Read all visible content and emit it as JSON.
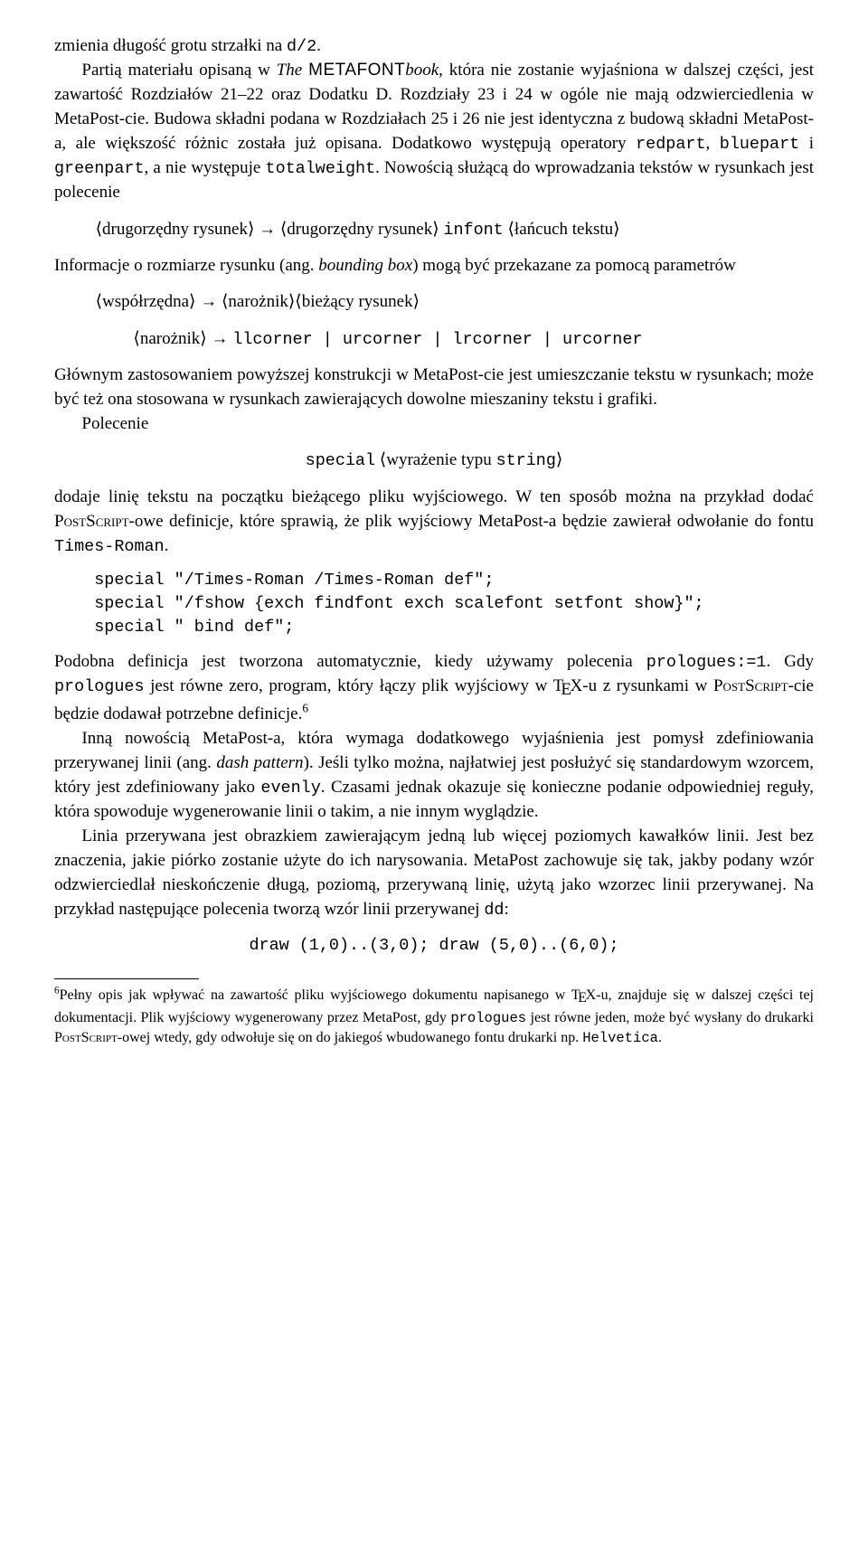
{
  "p1": {
    "run1_pre": "zmienia długość grotu strzałki na ",
    "run1_tt": "d/2",
    "run1_post": "."
  },
  "p2": {
    "pre": "Partią materiału opisaną w ",
    "ital": "The ",
    "sf": "METAFONT",
    "ital2": "book",
    "mid": ", która nie zostanie wyjaśniona w dalszej części, jest zawartość Rozdziałów 21–22 oraz Dodatku D. Rozdziały 23 i 24 w ogóle nie mają odzwierciedlenia w MetaPost-cie. Budowa składni podana w Rozdziałach 25 i 26 nie jest identyczna z budową składni MetaPost-a, ale większość różnic została już opisana. Dodatkowo występują operatory ",
    "tt1": "redpart",
    "s1": ", ",
    "tt2": "bluepart",
    "s2": " i ",
    "tt3": "greenpart",
    "s3": ", a nie występuje ",
    "tt4": "totalweight",
    "post": ". Nowością służącą do wprowadzania tekstów w rysunkach jest polecenie"
  },
  "syn1": {
    "a": "drugorzędny rysunek",
    "arr": " → ",
    "b": "drugorzędny rysunek",
    "sp": " ",
    "kw": "infont",
    "sp2": " ",
    "c": "łańcuch tekstu"
  },
  "p3": {
    "pre": "Informacje o rozmiarze rysunku (ang. ",
    "it": "bounding box",
    "post": ") mogą być przekazane za pomocą parametrów"
  },
  "syn2": {
    "a": "współrzędna",
    "arr": " → ",
    "b": "narożnik",
    "c": "bieżący rysunek"
  },
  "syn3": {
    "a": "narożnik",
    "arr": " → ",
    "rest": "llcorner | urcorner | lrcorner | urcorner"
  },
  "p4": "Głównym zastosowaniem powyższej konstrukcji w MetaPost-cie jest umieszczanie tekstu w rysunkach; może być też ona stosowana w rysunkach zawierających dowolne mieszaniny tekstu i grafiki.",
  "p5": "Polecenie",
  "syn4": {
    "kw": "special",
    "sp": " ",
    "a_pre": "wyrażenie typu ",
    "a_kw": "string"
  },
  "p6": {
    "pre": "dodaje linię tekstu na początku bieżącego pliku wyjściowego. W ten sposób można na przykład dodać ",
    "sc": "PostScript",
    "mid": "-owe definicje, które sprawią, że plik wyjściowy MetaPost-a będzie zawierał odwołanie do fontu ",
    "tt": "Times-Roman",
    "post": "."
  },
  "code1": "special \"/Times-Roman /Times-Roman def\";\nspecial \"/fshow {exch findfont exch scalefont setfont show}\";\nspecial \" bind def\";",
  "p7": {
    "pre": "Podobna definicja jest tworzona automatycznie, kiedy używamy polecenia ",
    "tt1": "prologues:=1",
    "s1": ". Gdy ",
    "tt2": "prologues",
    "s2": " jest równe zero, program, który łączy plik wyjściowy w ",
    "tex": "T<sub>E</sub>X",
    "s3": "-u z rysunkami w ",
    "sc": "PostScript",
    "s4": "-cie będzie dodawał potrzebne definicje.",
    "fn": "6"
  },
  "p8": {
    "pre": "Inną nowością MetaPost-a, która wymaga dodatkowego wyjaśnienia jest pomysł zdefiniowania przerywanej linii (ang. ",
    "it": "dash pattern",
    "mid": "). Jeśli tylko można, najłatwiej jest posłużyć się standardowym wzorcem, który jest zdefiniowany jako ",
    "tt": "evenly",
    "post": ". Czasami jednak okazuje się konieczne podanie odpowiedniej reguły, która spowoduje wygenerowanie linii o takim, a nie innym wyglądzie."
  },
  "p9": {
    "pre": "Linia przerywana jest obrazkiem zawierającym jedną lub więcej poziomych kawałków linii. Jest bez znaczenia, jakie piórko zostanie użyte do ich narysowania. MetaPost zachowuje się tak, jakby podany wzór odzwierciedlał nieskończenie długą, poziomą, przerywaną linię, użytą jako wzorzec linii przerywanej. Na przykład następujące polecenia tworzą wzór linii przerywanej ",
    "tt": "dd",
    "post": ":"
  },
  "code2": "draw (1,0)..(3,0); draw (5,0)..(6,0);",
  "fn6": {
    "num": "6",
    "pre": "Pełny opis jak wpływać na zawartość pliku wyjściowego dokumentu napisanego w ",
    "tex": "T<sub>E</sub>X",
    "mid": "-u, znajduje się w dalszej części tej dokumentacji. Plik wyjściowy wygenerowany przez MetaPost, gdy ",
    "tt1": "prologues",
    "mid2": " jest równe jeden, może być wysłany do drukarki ",
    "sc": "PostScript",
    "mid3": "-owej wtedy, gdy odwołuje się on do jakiegoś wbudowanego fontu drukarki np. ",
    "tt2": "Helvetica",
    "post": "."
  }
}
